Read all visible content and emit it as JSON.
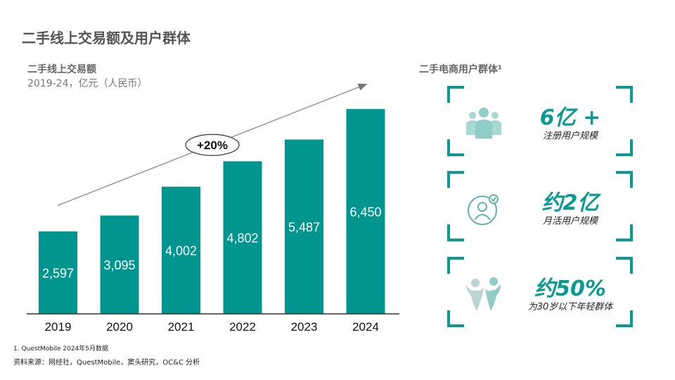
{
  "page_title": "二手线上交易额及用户群体",
  "chart_data": {
    "type": "bar",
    "title": "二手线上交易额",
    "subtitle": "2019-24，亿元（人民币）",
    "categories": [
      "2019",
      "2020",
      "2021",
      "2022",
      "2023",
      "2024"
    ],
    "values": [
      2597,
      3095,
      4002,
      4802,
      5487,
      6450
    ],
    "value_labels": [
      "2,597",
      "3,095",
      "4,002",
      "4,802",
      "5,487",
      "6,450"
    ],
    "growth_label": "+20%",
    "bar_color": "#00968f",
    "ylim": [
      0,
      7000
    ],
    "grid": false
  },
  "right_panel": {
    "title": "二手电商用户群体¹",
    "accent_color": "#0a9a91",
    "cards": [
      {
        "icon": "user-group-icon",
        "value": "6亿 +",
        "label": "注册用户规模"
      },
      {
        "icon": "active-user-icon",
        "value": "约2亿",
        "label": "月活用户规模"
      },
      {
        "icon": "young-people-icon",
        "value": "约50%",
        "label": "为30岁以下年轻群体"
      }
    ]
  },
  "footnote": "1. QuestMobile 2024年5月数据",
  "source": "资料来源：网经社，QuestMobile，窦头研究，OC&C 分析"
}
